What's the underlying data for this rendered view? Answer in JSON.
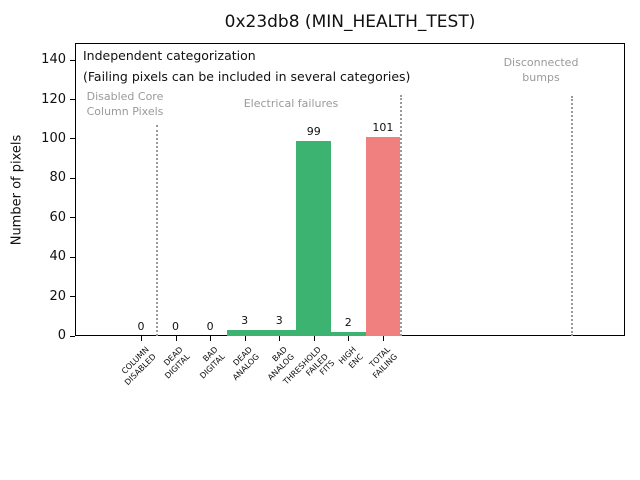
{
  "chart_data": {
    "type": "bar",
    "title": "0x23db8 (MIN_HEALTH_TEST)",
    "ylabel": "Number of pixels",
    "xlabel": "",
    "categories": [
      "COLUMN\nDISABLED",
      "DEAD\nDIGITAL",
      "BAD\nDIGITAL",
      "DEAD\nANALOG",
      "BAD\nANALOG",
      "THRESHOLD\nFAILED\nFITS",
      "HIGH\nENC",
      "TOTAL\nFAILING"
    ],
    "values": [
      0,
      0,
      0,
      3,
      3,
      99,
      2,
      101
    ],
    "value_labels": [
      "0",
      "0",
      "0",
      "3",
      "3",
      "99",
      "2",
      "101"
    ],
    "bar_colors": [
      "#3cb371",
      "#3cb371",
      "#3cb371",
      "#3cb371",
      "#3cb371",
      "#3cb371",
      "#3cb371",
      "#f08080"
    ],
    "yticks": [
      0,
      20,
      40,
      60,
      80,
      100,
      120,
      140
    ],
    "ylim": [
      0,
      148.7
    ],
    "grid": false,
    "legend": "none",
    "annotations": {
      "line1": "Independent categorization",
      "line2": "(Failing pixels can be included in several categories)"
    },
    "sections": [
      {
        "label": "Disabled Core\nColumn Pixels"
      },
      {
        "label": "Electrical failures"
      },
      {
        "label": "Disconnected\nbumps"
      }
    ],
    "colors": {
      "category_green": "#3cb371",
      "total_red": "#f08080",
      "section_text_gray": "#9a9a9a",
      "axis_black": "#000000"
    }
  }
}
